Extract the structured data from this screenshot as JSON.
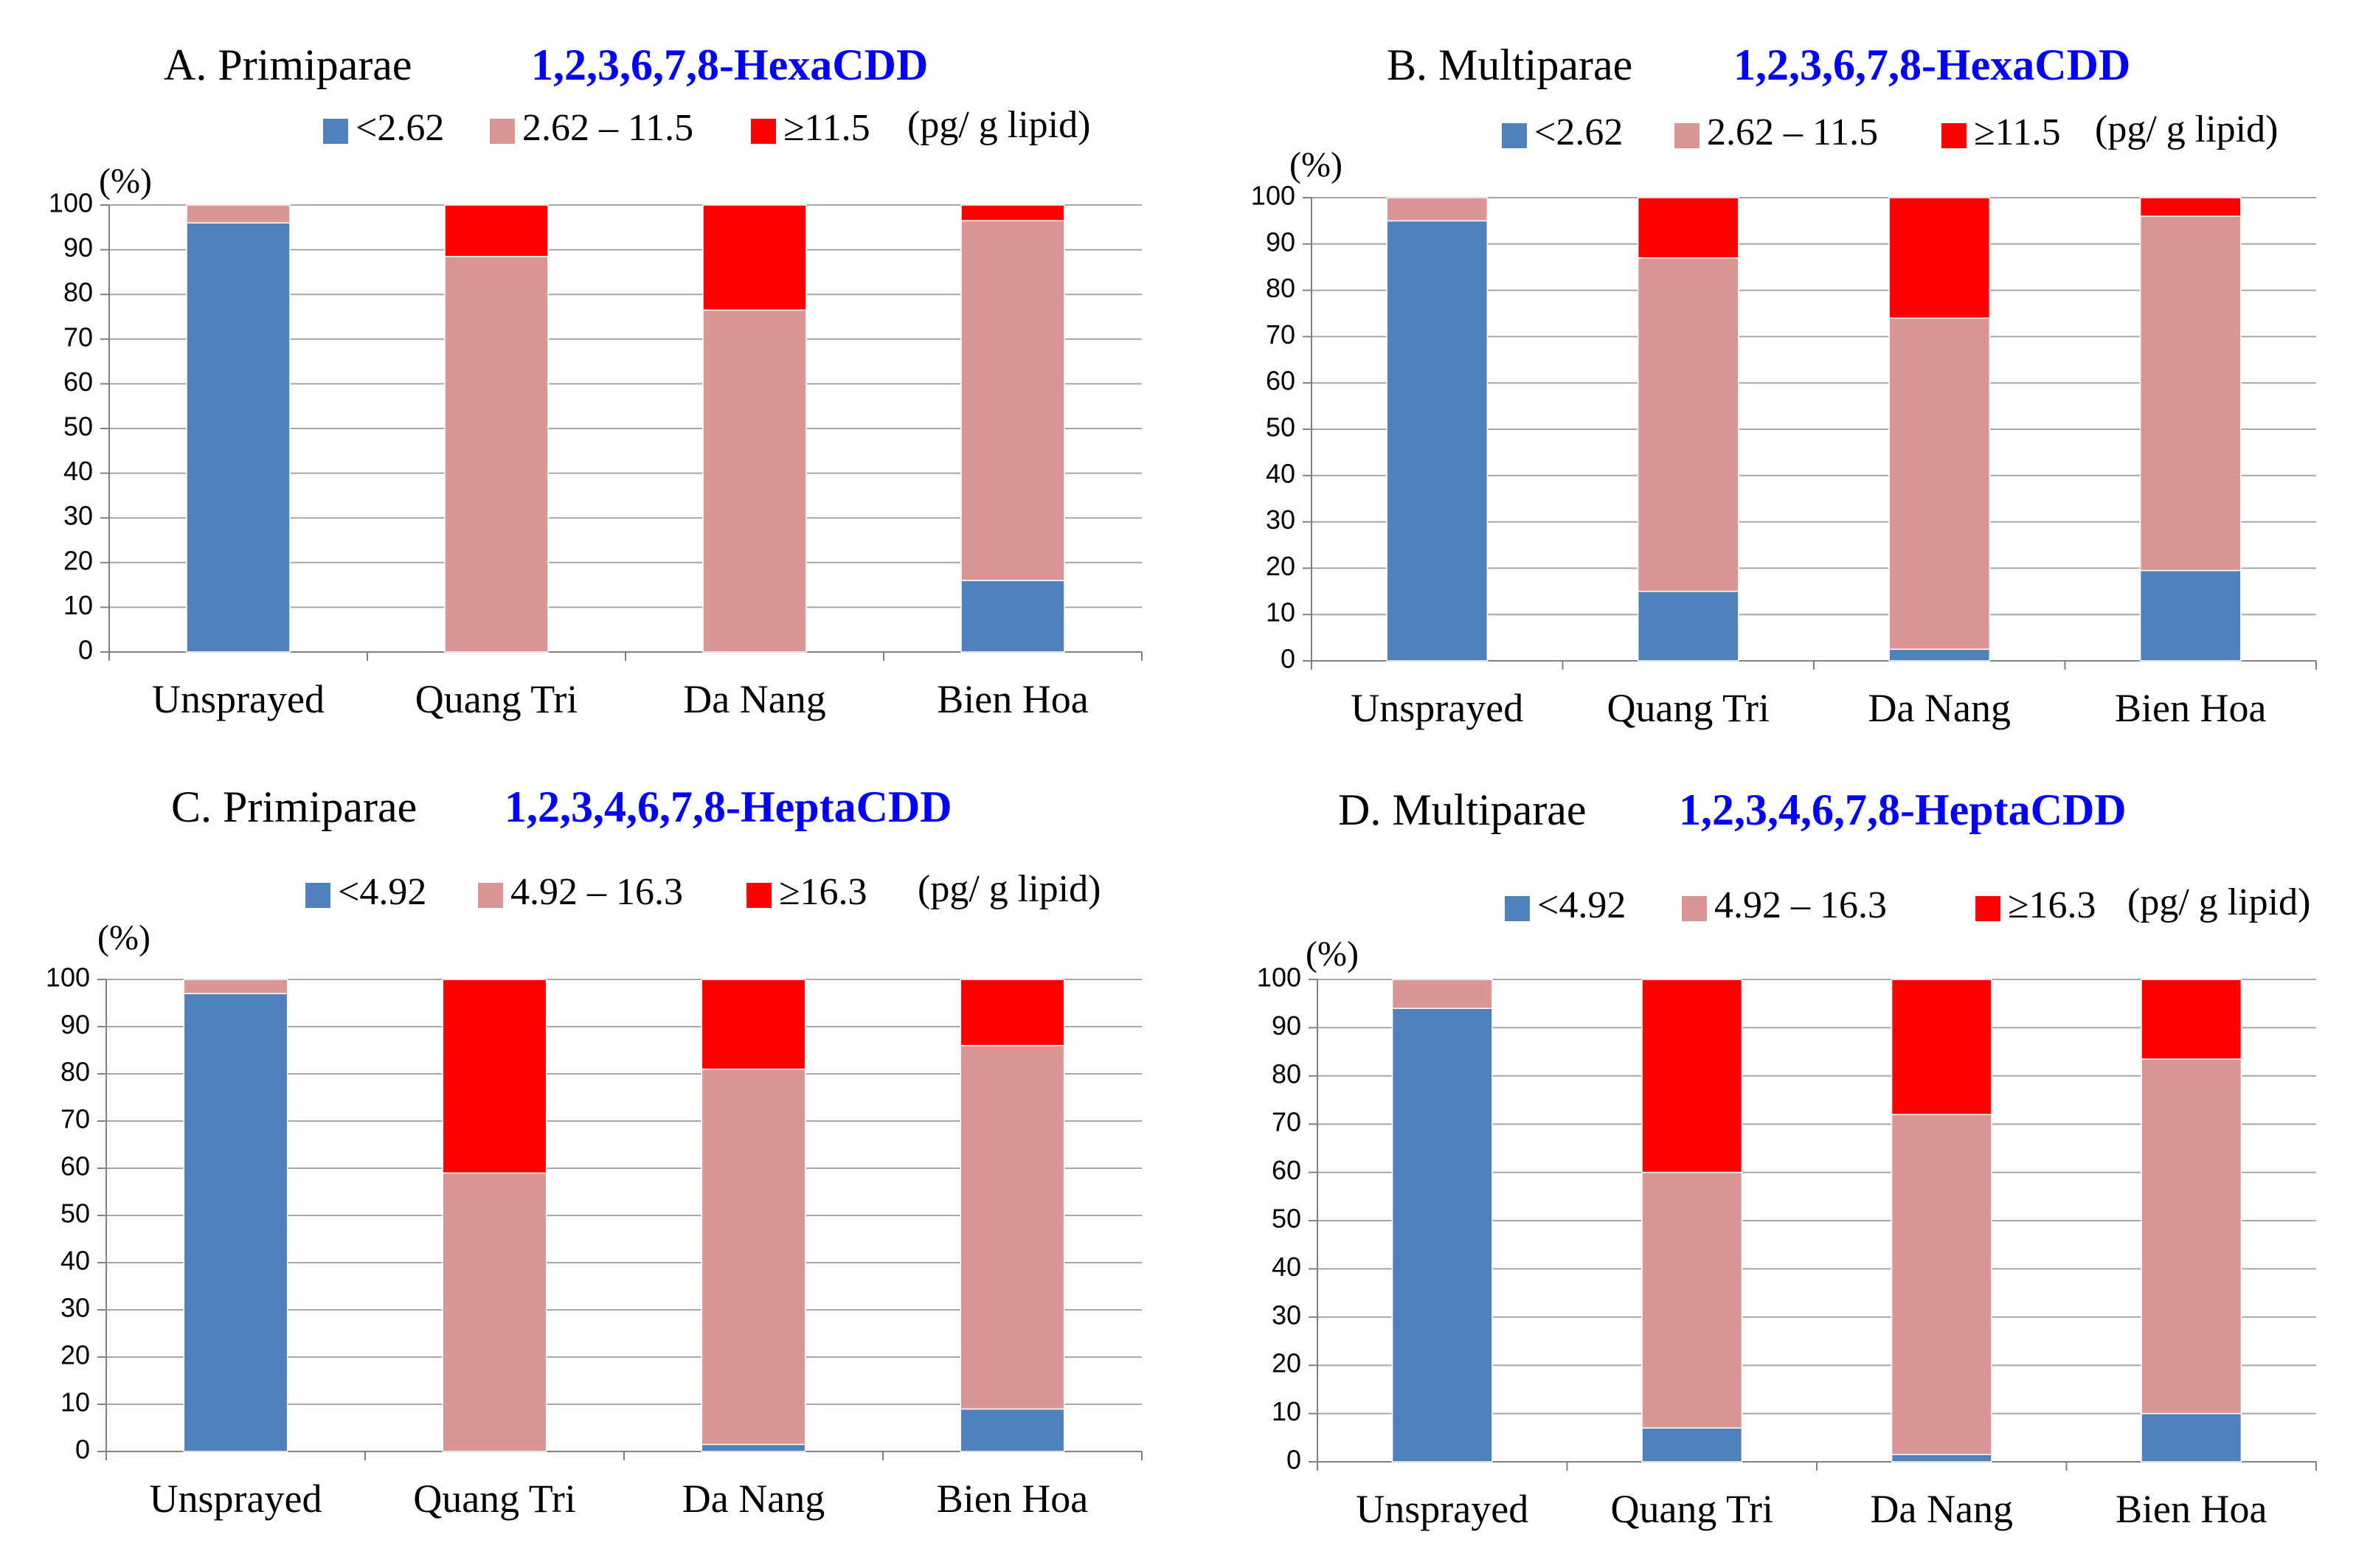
{
  "colors": {
    "low": "#4f81bd",
    "mid": "#d99694",
    "high": "#ff0000",
    "grid": "#a6a6a6",
    "axis": "#808080",
    "title_compound": "#0000ff"
  },
  "chart_data": [
    {
      "type": "bar",
      "stacked": true,
      "panel_label": "A. Primiparae",
      "compound": "1,2,3,6,7,8-HexaCDD",
      "unit_label": "(%)",
      "legend": [
        "<2.62",
        "2.62 – 11.5",
        "≥11.5"
      ],
      "legend_unit": "(pg/ g lipid)",
      "categories": [
        "Unsprayed",
        "Quang Tri",
        "Da Nang",
        "Bien Hoa"
      ],
      "series": [
        {
          "name": "<2.62",
          "values": [
            96,
            0,
            0,
            16
          ]
        },
        {
          "name": "2.62 – 11.5",
          "values": [
            4,
            88.5,
            76.5,
            80.5
          ]
        },
        {
          "name": "≥11.5",
          "values": [
            0,
            11.5,
            23.5,
            3.5
          ]
        }
      ],
      "ylim": [
        0,
        100
      ],
      "yticks": [
        0,
        10,
        20,
        30,
        40,
        50,
        60,
        70,
        80,
        90,
        100
      ],
      "grid": true
    },
    {
      "type": "bar",
      "stacked": true,
      "panel_label": "B. Multiparae",
      "compound": "1,2,3,6,7,8-HexaCDD",
      "unit_label": "(%)",
      "legend": [
        "<2.62",
        "2.62 – 11.5",
        "≥11.5"
      ],
      "legend_unit": "(pg/ g lipid)",
      "categories": [
        "Unsprayed",
        "Quang Tri",
        "Da Nang",
        "Bien Hoa"
      ],
      "series": [
        {
          "name": "<2.62",
          "values": [
            95,
            15,
            2.5,
            19.5
          ]
        },
        {
          "name": "2.62 – 11.5",
          "values": [
            5,
            72,
            71.5,
            76.5
          ]
        },
        {
          "name": "≥11.5",
          "values": [
            0,
            13,
            26,
            4
          ]
        }
      ],
      "ylim": [
        0,
        100
      ],
      "yticks": [
        0,
        10,
        20,
        30,
        40,
        50,
        60,
        70,
        80,
        90,
        100
      ],
      "grid": true
    },
    {
      "type": "bar",
      "stacked": true,
      "panel_label": "C. Primiparae",
      "compound": "1,2,3,4,6,7,8-HeptaCDD",
      "unit_label": "(%)",
      "legend": [
        "<4.92",
        "4.92 – 16.3",
        "≥16.3"
      ],
      "legend_unit": "(pg/ g lipid)",
      "categories": [
        "Unsprayed",
        "Quang Tri",
        "Da Nang",
        "Bien Hoa"
      ],
      "series": [
        {
          "name": "<4.92",
          "values": [
            97,
            0,
            1.5,
            9
          ]
        },
        {
          "name": "4.92 – 16.3",
          "values": [
            3,
            59,
            79.5,
            77
          ]
        },
        {
          "name": "≥16.3",
          "values": [
            0,
            41,
            19,
            14
          ]
        }
      ],
      "ylim": [
        0,
        100
      ],
      "yticks": [
        0,
        10,
        20,
        30,
        40,
        50,
        60,
        70,
        80,
        90,
        100
      ],
      "grid": true
    },
    {
      "type": "bar",
      "stacked": true,
      "panel_label": "D. Multiparae",
      "compound": "1,2,3,4,6,7,8-HeptaCDD",
      "unit_label": "(%)",
      "legend": [
        "<4.92",
        "4.92 – 16.3",
        "≥16.3"
      ],
      "legend_unit": "(pg/ g lipid)",
      "categories": [
        "Unsprayed",
        "Quang Tri",
        "Da Nang",
        "Bien Hoa"
      ],
      "series": [
        {
          "name": "<4.92",
          "values": [
            94,
            7,
            1.5,
            10
          ]
        },
        {
          "name": "4.92 – 16.3",
          "values": [
            6,
            53,
            70.5,
            73.5
          ]
        },
        {
          "name": "≥16.3",
          "values": [
            0,
            40,
            28,
            16.5
          ]
        }
      ],
      "ylim": [
        0,
        100
      ],
      "yticks": [
        0,
        10,
        20,
        30,
        40,
        50,
        60,
        70,
        80,
        90,
        100
      ],
      "grid": true
    }
  ]
}
